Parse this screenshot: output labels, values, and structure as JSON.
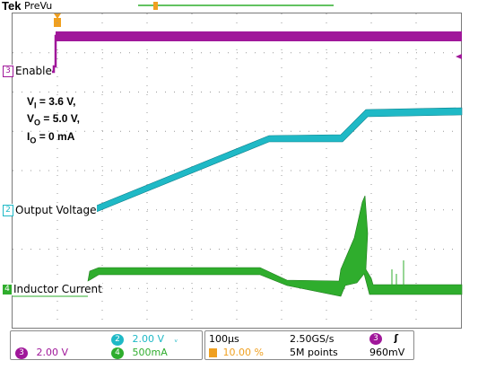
{
  "header": {
    "brand": "Tek",
    "mode": "PreVu"
  },
  "channels": {
    "enable": {
      "number": "3",
      "label": "Enable",
      "color": "#a0179a"
    },
    "output_voltage": {
      "number": "2",
      "label": "Output Voltage",
      "color": "#1fb9c6"
    },
    "inductor_current": {
      "number": "4",
      "label": "Inductor Current",
      "color": "#2fad2d"
    }
  },
  "conditions": {
    "vi_sym": "V",
    "vi_sub": "I",
    "vi_val": " = 3.6 V,",
    "vo_sym": "V",
    "vo_sub": "O",
    "vo_val": " = 5.0 V,",
    "io_sym": "I",
    "io_sub": "O",
    "io_val": " = 0 mA"
  },
  "status": {
    "ch3_scale": "2.00 V",
    "ch2_scale": "2.00 V",
    "ch2_bw": "ᵥ",
    "ch4_scale": "500mA",
    "timebase": "100µs",
    "trigger_pos": "10.00 %",
    "sample_rate": "2.50GS/s",
    "record_length": "5M points",
    "trig_source": "3",
    "trig_slope": "ʃ",
    "trig_level": "960mV"
  },
  "colors": {
    "trigger_marker": "#f0a020",
    "grid": "#9a9a9a"
  }
}
